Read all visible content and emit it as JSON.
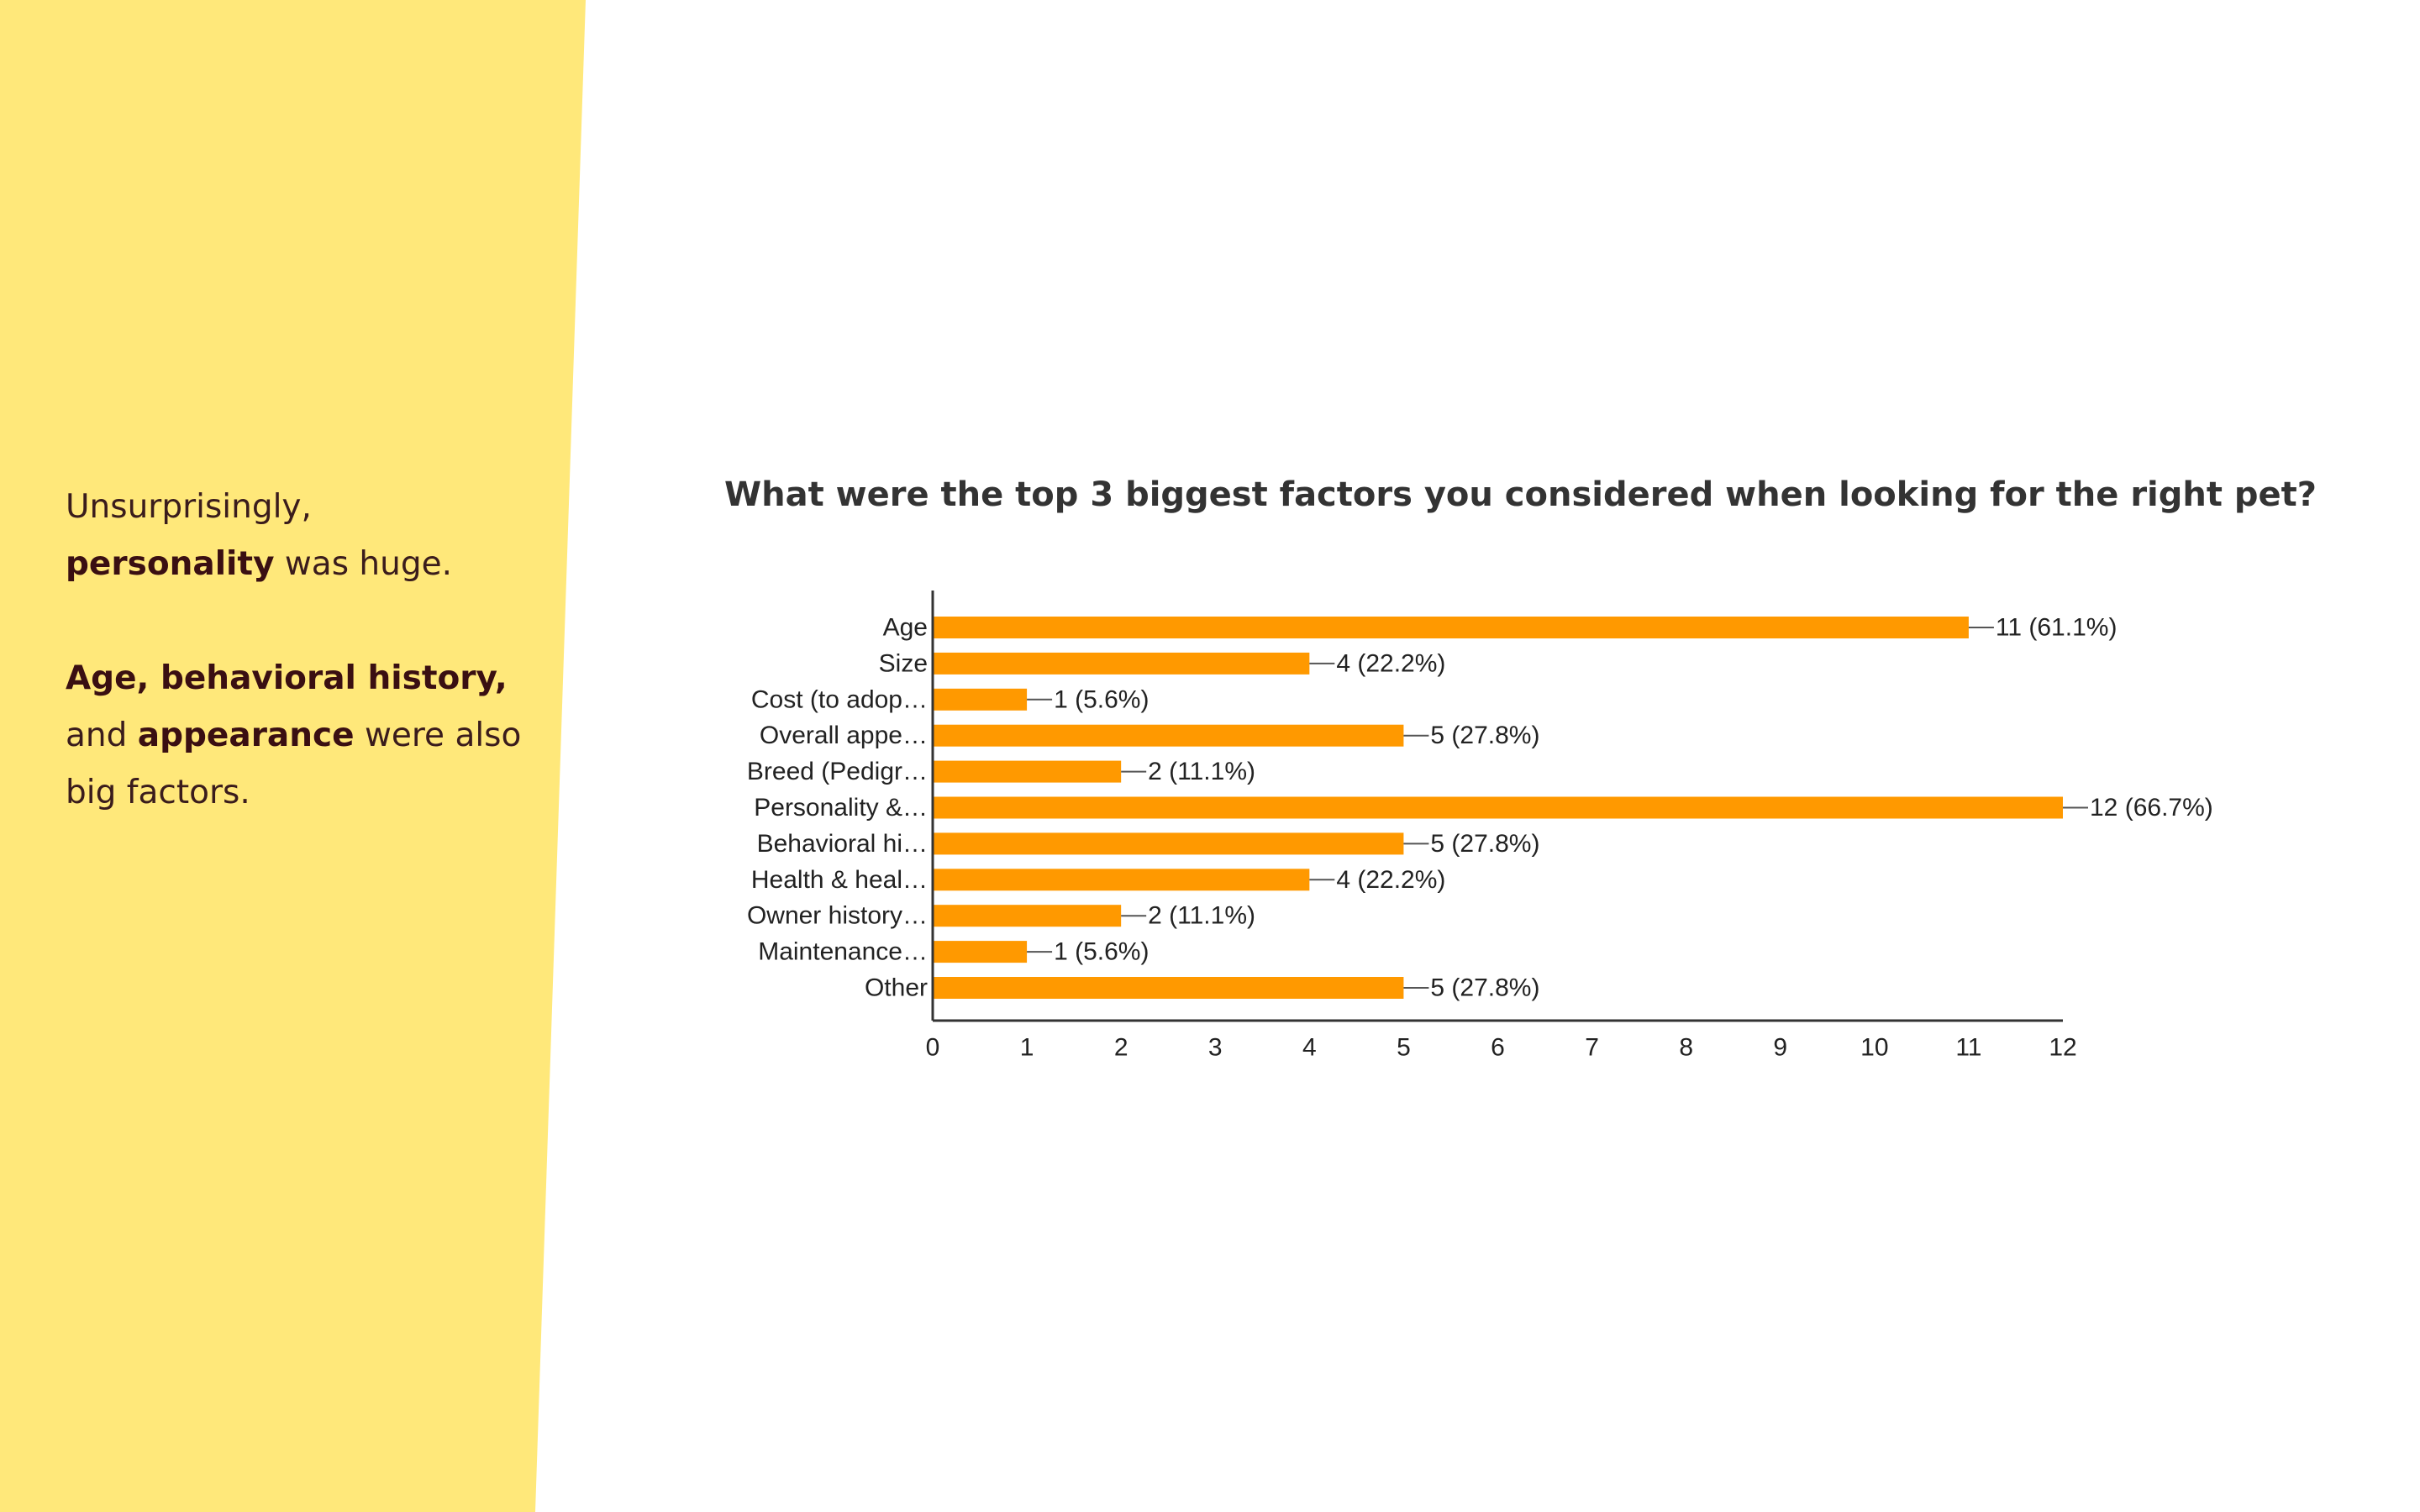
{
  "sidebar": {
    "line1_plain": "Unsurprisingly,",
    "line2_bold": "personality",
    "line2_plain": " was huge.",
    "para2_bold1": "Age, behavioral history,",
    "para2_plain1": "and ",
    "para2_bold2": "appearance",
    "para2_plain2": " were also big factors."
  },
  "colors": {
    "panel": "#FFE87A",
    "bar": "#FF9900",
    "axis": "#333333"
  },
  "chart_data": {
    "type": "bar",
    "orientation": "horizontal",
    "title": "What were the top 3 biggest factors you considered when looking for the right pet?",
    "categories": [
      "Age",
      "Size",
      "Cost (to adop…",
      "Overall appe…",
      "Breed (Pedigr…",
      "Personality &…",
      "Behavioral hi…",
      "Health & heal…",
      "Owner history…",
      "Maintenance…",
      "Other"
    ],
    "values": [
      11,
      4,
      1,
      5,
      2,
      12,
      5,
      4,
      2,
      1,
      5
    ],
    "data_labels": [
      "11 (61.1%)",
      "4 (22.2%)",
      "1 (5.6%)",
      "5 (27.8%)",
      "2 (11.1%)",
      "12 (66.7%)",
      "5 (27.8%)",
      "4 (22.2%)",
      "2 (11.1%)",
      "1 (5.6%)",
      "5 (27.8%)"
    ],
    "xlim": [
      0,
      12
    ],
    "xticks": [
      0,
      1,
      2,
      3,
      4,
      5,
      6,
      7,
      8,
      9,
      10,
      11,
      12
    ],
    "grid": false,
    "legend": "none"
  }
}
